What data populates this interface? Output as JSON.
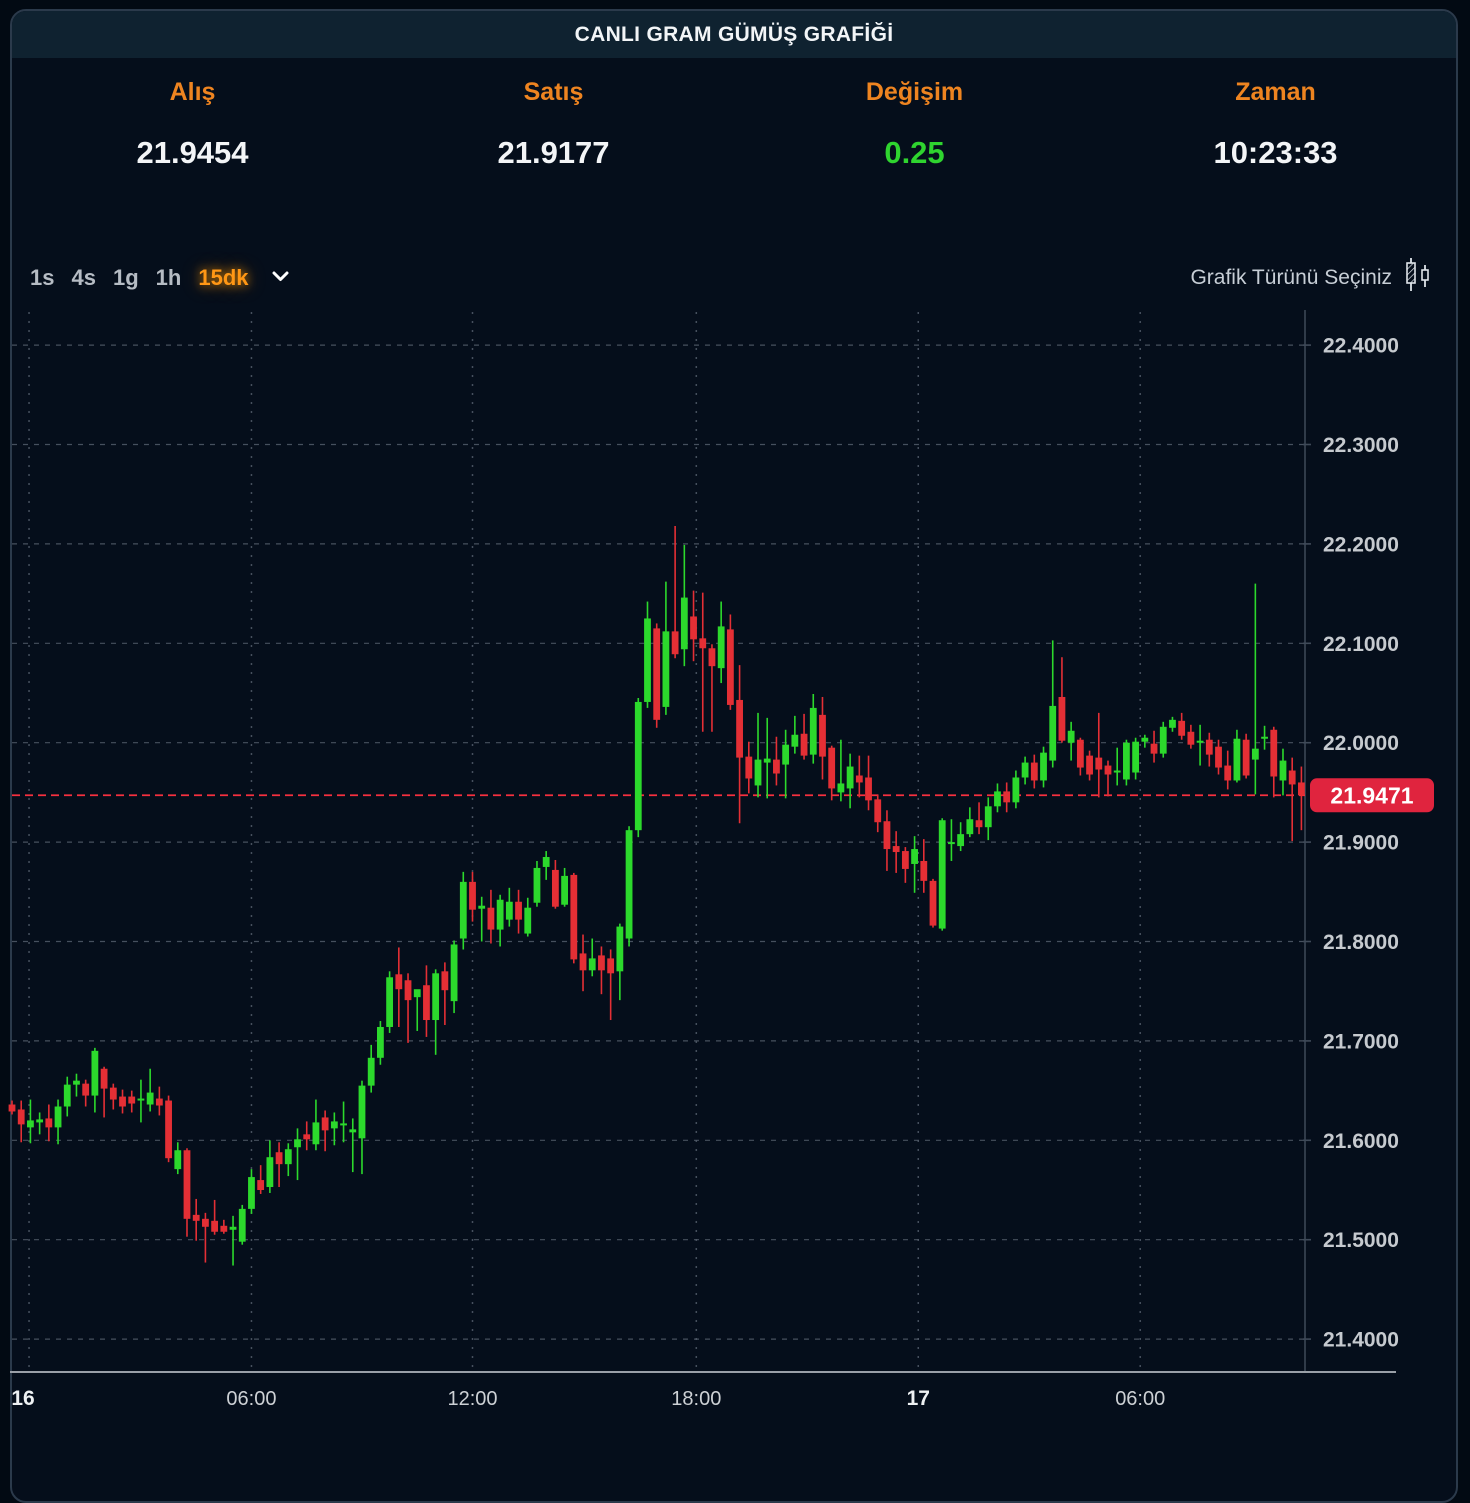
{
  "title": "CANLI GRAM GÜMÜŞ GRAFİĞİ",
  "quote": {
    "columns": [
      {
        "label": "Alış",
        "value": "21.9454"
      },
      {
        "label": "Satış",
        "value": "21.9177"
      },
      {
        "label": "Değişim",
        "value": "0.25"
      },
      {
        "label": "Zaman",
        "value": "10:23:33"
      }
    ]
  },
  "toolbar": {
    "timeframes": [
      {
        "label": "1s",
        "active": false
      },
      {
        "label": "4s",
        "active": false
      },
      {
        "label": "1g",
        "active": false
      },
      {
        "label": "1h",
        "active": false
      },
      {
        "label": "15dk",
        "active": true
      }
    ],
    "chart_type_label": "Grafik Türünü Seçiniz",
    "chart_type_icon": "candlestick-chart-icon"
  },
  "chart_data": {
    "type": "candlestick",
    "title": "",
    "xlabel": "",
    "ylabel": "",
    "interval": "15dk",
    "ylim": [
      21.367,
      22.435
    ],
    "grid": true,
    "price_axis": {
      "ticks": [
        "22.4000",
        "22.3000",
        "22.2000",
        "22.1000",
        "22.0000",
        "21.9000",
        "21.8000",
        "21.7000",
        "21.6000",
        "21.5000",
        "21.4000"
      ]
    },
    "x_axis": {
      "labels": [
        {
          "text": "16",
          "i": 1.2,
          "bold": true
        },
        {
          "text": "06:00",
          "i": 26,
          "bold": false
        },
        {
          "text": "12:00",
          "i": 50,
          "bold": false
        },
        {
          "text": "18:00",
          "i": 74.3,
          "bold": false
        },
        {
          "text": "17",
          "i": 98.4,
          "bold": true
        },
        {
          "text": "06:00",
          "i": 122.5,
          "bold": false
        }
      ],
      "gridlines": [
        1.85,
        26,
        50,
        74.3,
        98.4,
        122.5
      ]
    },
    "current_price": {
      "value": "21.9471",
      "price": 21.9471
    },
    "colors": {
      "up": "#2cd92c",
      "down": "#e42f35",
      "grid": "#525c6a",
      "axis_line": "#9aa0a8",
      "right_axis_line": "#3f4a59",
      "axis_text": "#c6cacf",
      "x_time_text": "#cdd1d5",
      "x_day_text": "#eef1f3",
      "current_line": "#f7303f",
      "current_bg": "#e0243e",
      "accent_orange": "#ee8420",
      "change_green": "#2fd42f"
    },
    "candles": [
      [
        21.636,
        21.64,
        21.626,
        21.629
      ],
      [
        21.631,
        21.64,
        21.598,
        21.616
      ],
      [
        21.613,
        21.641,
        21.597,
        21.62
      ],
      [
        21.618,
        21.628,
        21.606,
        21.621
      ],
      [
        21.622,
        21.636,
        21.599,
        21.613
      ],
      [
        21.613,
        21.641,
        21.596,
        21.634
      ],
      [
        21.634,
        21.664,
        21.624,
        21.656
      ],
      [
        21.656,
        21.667,
        21.644,
        21.66
      ],
      [
        21.657,
        21.661,
        21.634,
        21.645
      ],
      [
        21.645,
        21.693,
        21.628,
        21.69
      ],
      [
        21.672,
        21.674,
        21.623,
        21.652
      ],
      [
        21.653,
        21.657,
        21.631,
        21.641
      ],
      [
        21.644,
        21.651,
        21.627,
        21.634
      ],
      [
        21.644,
        21.65,
        21.628,
        21.637
      ],
      [
        21.64,
        21.661,
        21.618,
        21.642
      ],
      [
        21.636,
        21.672,
        21.629,
        21.648
      ],
      [
        21.642,
        21.654,
        21.625,
        21.635
      ],
      [
        21.64,
        21.645,
        21.578,
        21.582
      ],
      [
        21.571,
        21.598,
        21.566,
        21.59
      ],
      [
        21.59,
        21.592,
        21.503,
        21.521
      ],
      [
        21.525,
        21.541,
        21.499,
        21.519
      ],
      [
        21.521,
        21.527,
        21.477,
        21.513
      ],
      [
        21.519,
        21.54,
        21.505,
        21.508
      ],
      [
        21.514,
        21.52,
        21.506,
        21.508
      ],
      [
        21.51,
        21.524,
        21.474,
        21.513
      ],
      [
        21.498,
        21.535,
        21.495,
        21.531
      ],
      [
        21.531,
        21.571,
        21.526,
        21.563
      ],
      [
        21.56,
        21.575,
        21.546,
        21.55
      ],
      [
        21.553,
        21.6,
        21.547,
        21.583
      ],
      [
        21.588,
        21.598,
        21.553,
        21.576
      ],
      [
        21.576,
        21.597,
        21.564,
        21.591
      ],
      [
        21.593,
        21.612,
        21.56,
        21.601
      ],
      [
        21.606,
        21.619,
        21.59,
        21.601
      ],
      [
        21.596,
        21.641,
        21.59,
        21.618
      ],
      [
        21.623,
        21.63,
        21.589,
        21.61
      ],
      [
        21.612,
        21.628,
        21.595,
        21.619
      ],
      [
        21.615,
        21.639,
        21.598,
        21.617
      ],
      [
        21.608,
        21.622,
        21.568,
        21.611
      ],
      [
        21.602,
        21.66,
        21.566,
        21.655
      ],
      [
        21.655,
        21.696,
        21.648,
        21.683
      ],
      [
        21.683,
        21.72,
        21.676,
        21.714
      ],
      [
        21.714,
        21.77,
        21.708,
        21.764
      ],
      [
        21.767,
        21.794,
        21.714,
        21.752
      ],
      [
        21.761,
        21.768,
        21.698,
        21.741
      ],
      [
        21.744,
        21.751,
        21.71,
        21.752
      ],
      [
        21.756,
        21.776,
        21.704,
        21.721
      ],
      [
        21.721,
        21.772,
        21.686,
        21.768
      ],
      [
        21.77,
        21.779,
        21.716,
        21.751
      ],
      [
        21.74,
        21.801,
        21.728,
        21.797
      ],
      [
        21.803,
        21.87,
        21.792,
        21.86
      ],
      [
        21.86,
        21.87,
        21.82,
        21.832
      ],
      [
        21.833,
        21.845,
        21.8,
        21.836
      ],
      [
        21.834,
        21.852,
        21.798,
        21.812
      ],
      [
        21.812,
        21.847,
        21.795,
        21.842
      ],
      [
        21.822,
        21.854,
        21.815,
        21.84
      ],
      [
        21.84,
        21.852,
        21.808,
        21.822
      ],
      [
        21.808,
        21.844,
        21.805,
        21.834
      ],
      [
        21.839,
        21.881,
        21.835,
        21.874
      ],
      [
        21.875,
        21.891,
        21.862,
        21.885
      ],
      [
        21.872,
        21.882,
        21.833,
        21.835
      ],
      [
        21.837,
        21.874,
        21.835,
        21.866
      ],
      [
        21.867,
        21.869,
        21.778,
        21.782
      ],
      [
        21.788,
        21.807,
        21.75,
        21.771
      ],
      [
        21.771,
        21.803,
        21.765,
        21.783
      ],
      [
        21.786,
        21.795,
        21.747,
        21.771
      ],
      [
        21.783,
        21.792,
        21.721,
        21.768
      ],
      [
        21.77,
        21.818,
        21.741,
        21.815
      ],
      [
        21.803,
        21.916,
        21.795,
        21.912
      ],
      [
        21.912,
        22.045,
        21.905,
        22.041
      ],
      [
        22.041,
        22.142,
        22.035,
        22.125
      ],
      [
        22.115,
        22.12,
        22.015,
        22.023
      ],
      [
        22.036,
        22.162,
        22.028,
        22.112
      ],
      [
        22.112,
        22.218,
        22.085,
        22.089
      ],
      [
        22.094,
        22.199,
        22.077,
        22.146
      ],
      [
        22.127,
        22.153,
        22.082,
        22.104
      ],
      [
        22.105,
        22.151,
        22.011,
        22.095
      ],
      [
        22.095,
        22.099,
        22.011,
        22.077
      ],
      [
        22.075,
        22.142,
        22.06,
        22.117
      ],
      [
        22.114,
        22.129,
        22.033,
        22.038
      ],
      [
        22.043,
        22.078,
        21.919,
        21.985
      ],
      [
        21.986,
        22.001,
        21.949,
        21.964
      ],
      [
        21.957,
        22.03,
        21.945,
        21.983
      ],
      [
        21.98,
        22.025,
        21.944,
        21.984
      ],
      [
        21.983,
        22.006,
        21.957,
        21.969
      ],
      [
        21.978,
        22.013,
        21.944,
        21.998
      ],
      [
        21.996,
        22.027,
        21.989,
        22.008
      ],
      [
        22.009,
        22.029,
        21.983,
        21.987
      ],
      [
        21.988,
        22.049,
        21.979,
        22.035
      ],
      [
        22.028,
        22.046,
        21.963,
        21.986
      ],
      [
        21.995,
        21.997,
        21.942,
        21.954
      ],
      [
        21.95,
        22.003,
        21.941,
        21.959
      ],
      [
        21.954,
        21.989,
        21.934,
        21.976
      ],
      [
        21.967,
        21.987,
        21.945,
        21.96
      ],
      [
        21.965,
        21.987,
        21.932,
        21.942
      ],
      [
        21.943,
        21.948,
        21.91,
        21.92
      ],
      [
        21.921,
        21.932,
        21.871,
        21.893
      ],
      [
        21.896,
        21.911,
        21.869,
        21.89
      ],
      [
        21.891,
        21.895,
        21.859,
        21.873
      ],
      [
        21.878,
        21.906,
        21.849,
        21.893
      ],
      [
        21.881,
        21.903,
        21.849,
        21.861
      ],
      [
        21.861,
        21.863,
        21.814,
        21.816
      ],
      [
        21.813,
        21.924,
        21.811,
        21.922
      ],
      [
        21.898,
        21.923,
        21.881,
        21.9
      ],
      [
        21.896,
        21.92,
        21.891,
        21.908
      ],
      [
        21.908,
        21.935,
        21.905,
        21.923
      ],
      [
        21.922,
        21.94,
        21.908,
        21.915
      ],
      [
        21.915,
        21.945,
        21.902,
        21.936
      ],
      [
        21.936,
        21.959,
        21.93,
        21.951
      ],
      [
        21.951,
        21.96,
        21.93,
        21.94
      ],
      [
        21.94,
        21.972,
        21.934,
        21.965
      ],
      [
        21.965,
        21.986,
        21.958,
        21.98
      ],
      [
        21.98,
        21.988,
        21.954,
        21.962
      ],
      [
        21.962,
        21.996,
        21.955,
        21.99
      ],
      [
        21.982,
        22.103,
        21.975,
        22.037
      ],
      [
        22.046,
        22.086,
        22.0,
        22.002
      ],
      [
        22.0,
        22.021,
        21.982,
        22.012
      ],
      [
        22.003,
        22.005,
        21.967,
        21.975
      ],
      [
        21.987,
        21.992,
        21.962,
        21.968
      ],
      [
        21.985,
        22.03,
        21.945,
        21.973
      ],
      [
        21.977,
        21.982,
        21.946,
        21.968
      ],
      [
        21.97,
        21.995,
        21.957,
        21.972
      ],
      [
        21.963,
        22.003,
        21.957,
        22.0
      ],
      [
        21.97,
        22.005,
        21.963,
        22.001
      ],
      [
        22.001,
        22.008,
        21.995,
        22.005
      ],
      [
        21.999,
        22.012,
        21.98,
        21.989
      ],
      [
        21.989,
        22.021,
        21.985,
        22.016
      ],
      [
        22.015,
        22.026,
        22.011,
        22.023
      ],
      [
        22.022,
        22.03,
        22.003,
        22.007
      ],
      [
        22.011,
        22.018,
        21.994,
        21.998
      ],
      [
        22.0,
        22.018,
        21.977,
        22.002
      ],
      [
        22.003,
        22.01,
        21.976,
        21.988
      ],
      [
        21.996,
        22.003,
        21.968,
        21.975
      ],
      [
        21.977,
        21.992,
        21.953,
        21.962
      ],
      [
        21.962,
        22.013,
        21.96,
        22.004
      ],
      [
        22.003,
        22.009,
        21.964,
        21.967
      ],
      [
        21.983,
        22.16,
        21.948,
        21.994
      ],
      [
        22.004,
        22.017,
        21.993,
        22.006
      ],
      [
        22.013,
        22.016,
        21.945,
        21.966
      ],
      [
        21.962,
        21.994,
        21.947,
        21.982
      ],
      [
        21.972,
        21.985,
        21.901,
        21.958
      ],
      [
        21.96,
        21.976,
        21.912,
        21.9471
      ]
    ]
  }
}
